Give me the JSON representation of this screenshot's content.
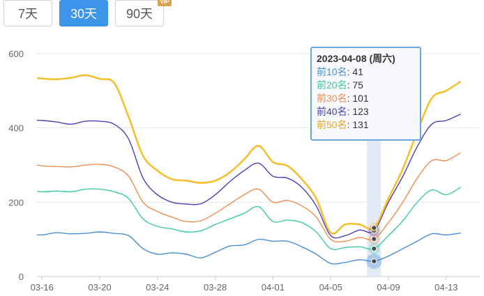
{
  "range_buttons": {
    "b7": "7天",
    "b30": "30天",
    "b90": "90天",
    "vip": "VIP"
  },
  "tooltip": {
    "title": "2023-04-08 (周六)",
    "rows": [
      {
        "label": "前10名",
        "value": "41"
      },
      {
        "label": "前20名",
        "value": "75"
      },
      {
        "label": "前30名",
        "value": "101"
      },
      {
        "label": "前40名",
        "value": "123"
      },
      {
        "label": "前50名",
        "value": "131"
      }
    ]
  },
  "colors": {
    "accent": "#3d95ea",
    "top10": "#4a8fd8",
    "top20": "#3ec9a7",
    "top30": "#ef8d4f",
    "top40": "#4b3fb8",
    "top50": "#f5c02f"
  },
  "chart_data": {
    "type": "line",
    "title": "",
    "xlabel": "",
    "ylabel": "",
    "ylim": [
      0,
      600
    ],
    "yticks": [
      0,
      200,
      400,
      600
    ],
    "grid": true,
    "x": [
      "03-15",
      "03-16",
      "03-17",
      "03-18",
      "03-19",
      "03-20",
      "03-21",
      "03-22",
      "03-23",
      "03-24",
      "03-25",
      "03-26",
      "03-27",
      "03-28",
      "03-29",
      "03-30",
      "03-31",
      "04-01",
      "04-02",
      "04-03",
      "04-04",
      "04-05",
      "04-06",
      "04-07",
      "04-08",
      "04-09",
      "04-10",
      "04-11",
      "04-12",
      "04-13",
      "04-14"
    ],
    "xtick_labels": [
      "03-16",
      "03-20",
      "03-24",
      "03-28",
      "04-01",
      "04-05",
      "04-09",
      "04-13"
    ],
    "highlight_x": "04-08",
    "series": [
      {
        "name": "前10名",
        "values": [
          114,
          112,
          118,
          115,
          116,
          120,
          116,
          110,
          75,
          60,
          64,
          60,
          50,
          65,
          82,
          85,
          100,
          95,
          95,
          80,
          60,
          35,
          38,
          45,
          41,
          55,
          75,
          95,
          115,
          112,
          117
        ]
      },
      {
        "name": "前20名",
        "values": [
          233,
          228,
          230,
          228,
          235,
          235,
          228,
          210,
          155,
          135,
          128,
          120,
          123,
          140,
          155,
          170,
          188,
          148,
          152,
          145,
          120,
          75,
          78,
          80,
          75,
          110,
          150,
          200,
          233,
          220,
          240
        ]
      },
      {
        "name": "前30名",
        "values": [
          305,
          298,
          296,
          295,
          300,
          302,
          295,
          270,
          200,
          175,
          160,
          148,
          150,
          170,
          195,
          220,
          235,
          200,
          205,
          190,
          160,
          100,
          95,
          105,
          101,
          145,
          200,
          265,
          312,
          312,
          333
        ]
      },
      {
        "name": "前40名",
        "values": [
          421,
          420,
          416,
          410,
          418,
          418,
          410,
          370,
          265,
          220,
          200,
          195,
          196,
          220,
          255,
          285,
          305,
          270,
          265,
          240,
          190,
          110,
          110,
          125,
          123,
          200,
          270,
          350,
          410,
          420,
          437
        ]
      },
      {
        "name": "前50名",
        "values": [
          537,
          533,
          531,
          535,
          542,
          532,
          521,
          430,
          325,
          285,
          262,
          258,
          252,
          258,
          280,
          315,
          352,
          308,
          298,
          262,
          210,
          118,
          140,
          140,
          131,
          210,
          290,
          390,
          480,
          500,
          525
        ]
      }
    ]
  }
}
